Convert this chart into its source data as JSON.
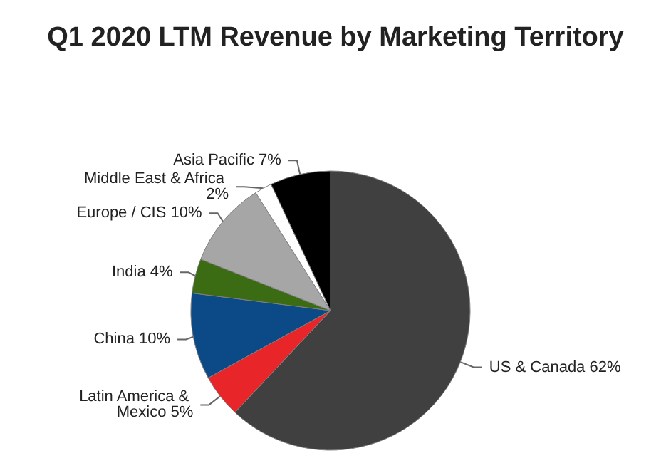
{
  "chart_data": {
    "type": "pie",
    "title": "Q1 2020 LTM Revenue by Marketing Territory",
    "categories": [
      "US & Canada",
      "Latin America & Mexico",
      "China",
      "India",
      "Europe / CIS",
      "Middle East & Africa",
      "Asia Pacific"
    ],
    "values": [
      62,
      5,
      10,
      4,
      10,
      2,
      7
    ],
    "value_labels": [
      "62%",
      "5%",
      "10%",
      "4%",
      "10%",
      "2%",
      "7%"
    ],
    "colors": [
      "#404040",
      "#e8262a",
      "#0b4a86",
      "#3b6b12",
      "#a6a6a6",
      "#ffffff",
      "#000000"
    ],
    "legend": false
  }
}
